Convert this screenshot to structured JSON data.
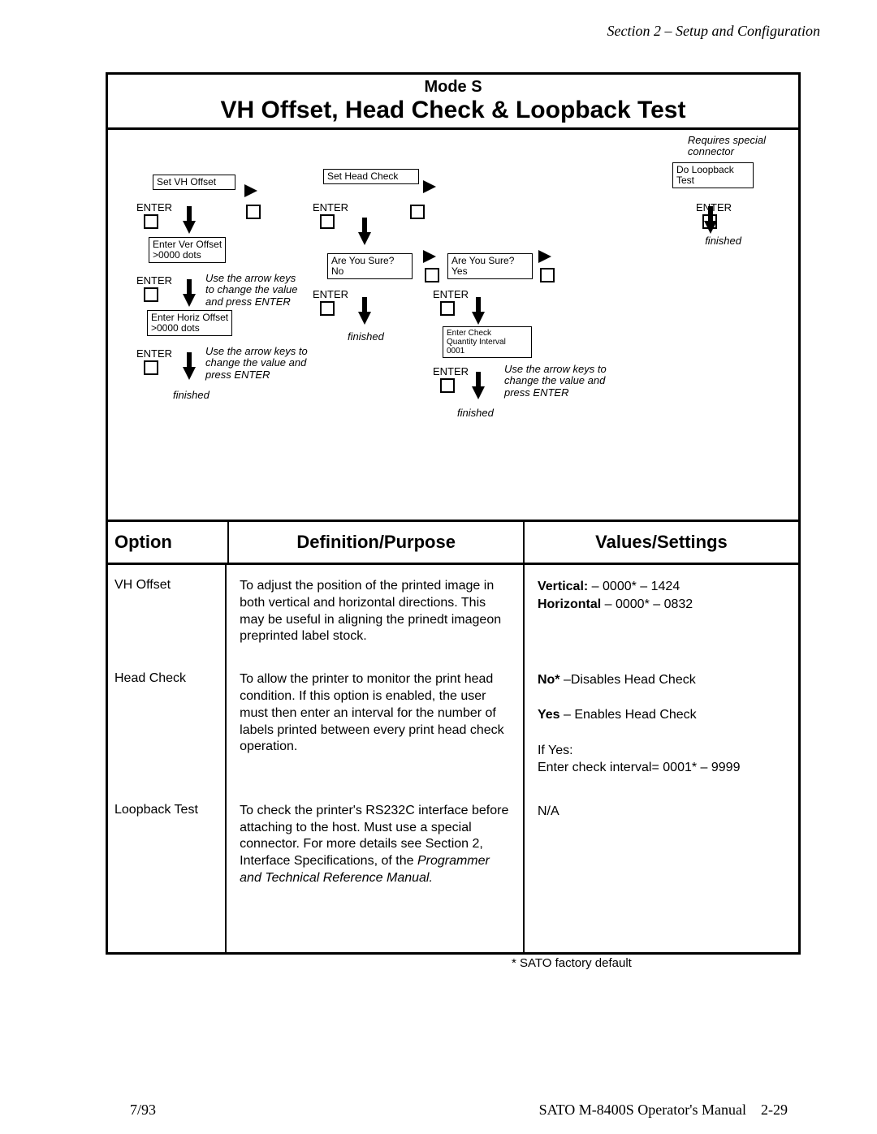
{
  "section_header": "Section 2 – Setup and Configuration",
  "title_mode": "Mode S",
  "title_main": "VH Offset, Head Check & Loopback Test",
  "diagram": {
    "requires": "Requires special\nconnector",
    "set_vh": "Set VH Offset",
    "set_head": "Set Head Check",
    "do_loop": "Do Loopback\nTest",
    "enter": "ENTER",
    "ver_off": "Enter Ver Offset\n>0000 dots",
    "horiz_off": "Enter Horiz Offset\n>0000 dots",
    "sure_no": "Are You Sure?\nNo",
    "sure_yes": "Are You Sure?\nYes",
    "check_int": "Enter Check\nQuantity Interval\n0001",
    "hint1": "Use the arrow keys\nto change the value\nand press ENTER",
    "hint2": "Use the arrow keys to\nchange the value and\npress ENTER",
    "hint3": "Use the arrow keys to\nchange the value and\npress ENTER",
    "finished": "finished"
  },
  "table": {
    "h_option": "Option",
    "h_def": "Definition/Purpose",
    "h_val": "Values/Settings",
    "rows": [
      {
        "opt": "VH Offset",
        "def": "To adjust the position of the printed image  in both vertical and horizontal directions.  This may be useful in aligning the prinedt imageon preprinted label stock.",
        "val_lines": [
          {
            "b": "Vertical:",
            "rest": "   –    0000* – 1424"
          },
          {
            "b": "Horizontal",
            "rest": " –    0000* – 0832"
          }
        ]
      },
      {
        "opt": "Head Check",
        "def": "To allow the printer to monitor the print head condition.  If this option is enabled, the user must then enter an interval for the number of labels printed between every print head check operation.",
        "val_lines": [
          {
            "b": "No*",
            "rest": " –Disables Head Check"
          },
          {
            "blank": true
          },
          {
            "b": "Yes",
            "rest": " – Enables Head Check"
          },
          {
            "blank": true
          },
          {
            "plain": "If Yes:"
          },
          {
            "plain": "Enter check interval= 0001* – 9999"
          }
        ]
      },
      {
        "opt": "Loopback Test",
        "def_html": "To check the printer's RS232C interface before attaching to the host.  Must use a special connector.  For more details see Section 2, Interface Specifications, of the <i>Programmer and Technical Reference Manual.</i>",
        "val_lines": [
          {
            "plain": "N/A"
          }
        ],
        "extra_pad": 80
      }
    ]
  },
  "factory_note": "* SATO factory default",
  "footer_left": "7/93",
  "footer_right": "SATO M-8400S Operator's Manual",
  "footer_page": "2-29"
}
